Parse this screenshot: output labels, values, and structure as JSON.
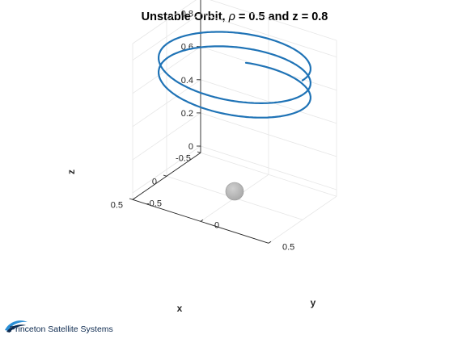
{
  "chart_data": {
    "type": "line",
    "view": "3d",
    "title_main": "Unstable Orbit, ",
    "title_symbol": "ρ",
    "title_rest": " = 0.5 and z = 0.8",
    "xlabel": "x",
    "ylabel": "y",
    "zlabel": "z",
    "xlim": [
      -0.5,
      0.5
    ],
    "ylim": [
      -0.5,
      0.5
    ],
    "zlim": [
      0,
      0.8
    ],
    "x_ticks": [
      "-0.5",
      "0",
      "0.5"
    ],
    "y_ticks": [
      "-0.5",
      "0",
      "0.5"
    ],
    "z_ticks": [
      "0",
      "0.2",
      "0.4",
      "0.6",
      "0.8"
    ],
    "grid": true,
    "series": [
      {
        "kind": "helix",
        "radius": 0.5,
        "z_start": 0.8,
        "z_end": 0.6,
        "turns": 2.3,
        "color": "#1f73b6"
      }
    ],
    "sphere": {
      "center": [
        0,
        0,
        0
      ],
      "color": "#a8a8a8"
    }
  },
  "brand": {
    "name": "Princeton Satellite Systems",
    "color": "#0d2a4f",
    "accent": "#2b8fd6"
  }
}
